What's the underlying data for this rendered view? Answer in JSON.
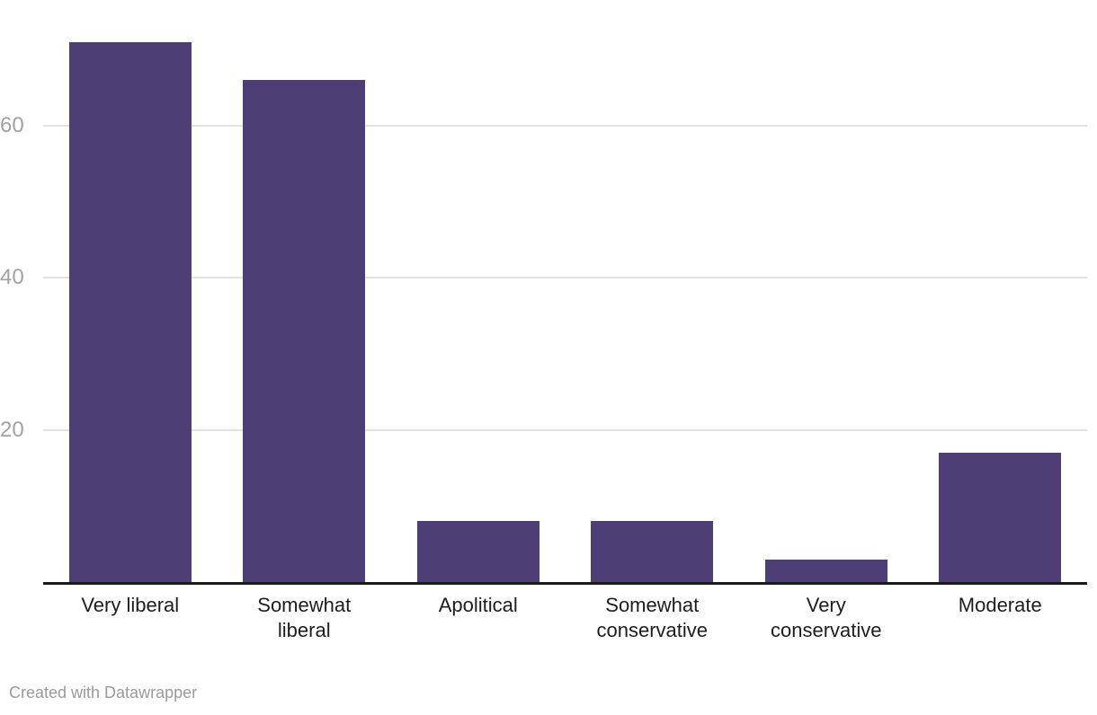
{
  "footer": {
    "credit": "Created with Datawrapper"
  },
  "colors": {
    "background": "#ffffff",
    "bar": "#4d3f76",
    "gridline": "#e2e2e2",
    "axis_line": "#1a1a1a",
    "tick_label": "#a2a2a2",
    "category_label": "#1d1d1d",
    "credit_text": "#9a9a9a"
  },
  "chart_data": {
    "type": "bar",
    "orientation": "vertical",
    "title": "",
    "xlabel": "",
    "ylabel": "",
    "categories": [
      "Very liberal",
      "Somewhat liberal",
      "Apolitical",
      "Somewhat conservative",
      "Very conservative",
      "Moderate"
    ],
    "category_label_lines": [
      [
        "Very liberal"
      ],
      [
        "Somewhat",
        "liberal"
      ],
      [
        "Apolitical"
      ],
      [
        "Somewhat",
        "conservative"
      ],
      [
        "Very",
        "conservative"
      ],
      [
        "Moderate"
      ]
    ],
    "values": [
      71,
      66,
      8,
      8,
      3,
      17
    ],
    "y_ticks": [
      20,
      40,
      60
    ],
    "ylim": [
      0,
      76.5
    ],
    "grid": "horizontal-only",
    "legend": "none",
    "bar_color": "#4d3f76"
  }
}
